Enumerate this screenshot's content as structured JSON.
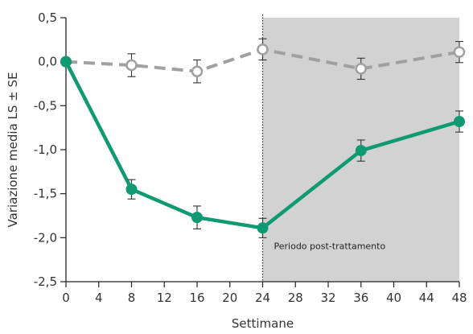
{
  "chart_data": {
    "type": "line",
    "xlabel": "Settimane",
    "ylabel": "Variazione media LS ± SE",
    "xlim": [
      0,
      48
    ],
    "ylim": [
      -2.5,
      0.5
    ],
    "xticks": [
      0,
      4,
      8,
      12,
      16,
      20,
      24,
      28,
      32,
      36,
      40,
      44,
      48
    ],
    "xtick_labels": [
      "0",
      "4",
      "8",
      "12",
      "16",
      "20",
      "24",
      "28",
      "32",
      "36",
      "40",
      "44",
      "48"
    ],
    "yticks": [
      0.5,
      0.0,
      -0.5,
      -1.0,
      -1.5,
      -2.0,
      -2.5
    ],
    "ytick_labels": [
      "0,5",
      "0,0",
      "-0,5",
      "-1,0",
      "-1,5",
      "-2,0",
      "-2,5"
    ],
    "grid": false,
    "legend": "none",
    "shaded_region": {
      "x_start": 24,
      "x_end": 48,
      "label": "Periodo post-trattamento",
      "color": "#d2d2d3"
    },
    "series": [
      {
        "style": "dashed",
        "marker": "open-circle",
        "color": "#a0a0a0",
        "x": [
          0,
          8,
          16,
          24,
          36,
          48
        ],
        "y": [
          0.0,
          -0.04,
          -0.11,
          0.14,
          -0.08,
          0.11
        ],
        "err": [
          0.0,
          0.13,
          0.13,
          0.12,
          0.12,
          0.12
        ]
      },
      {
        "style": "solid",
        "marker": "filled-circle",
        "color": "#0f9a72",
        "x": [
          0,
          8,
          16,
          24,
          36,
          48
        ],
        "y": [
          0.0,
          -1.45,
          -1.77,
          -1.89,
          -1.01,
          -0.68
        ],
        "err": [
          0.0,
          0.11,
          0.13,
          0.11,
          0.12,
          0.12
        ]
      }
    ]
  }
}
